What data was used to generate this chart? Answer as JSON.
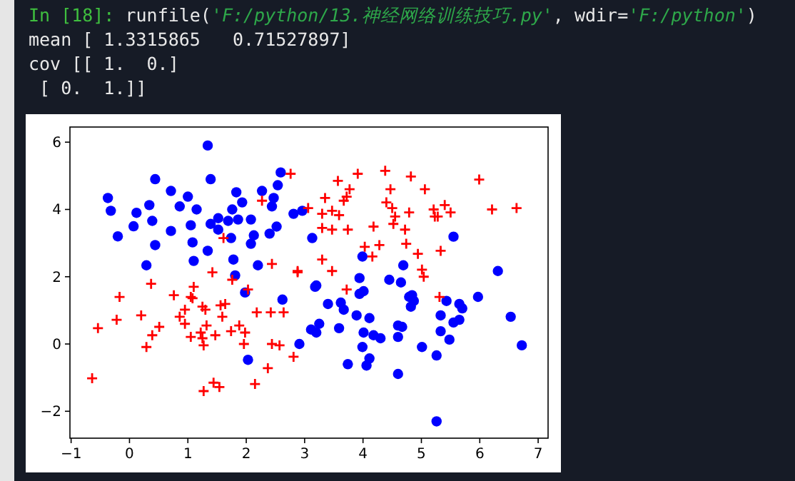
{
  "chart_data": {
    "type": "scatter",
    "annotations": [
      "In [18]: runfile('F:/python/13.神经网络训练技巧.py', wdir='F:/python')",
      "mean [ 1.3315865   0.71527897]",
      "cov [[ 1.  0.]",
      " [ 0.  1.]]"
    ],
    "xlim": [
      -1.02,
      7.17
    ],
    "ylim": [
      -2.8,
      6.45
    ],
    "xticks": [
      -1,
      0,
      1,
      2,
      3,
      4,
      5,
      6,
      7
    ],
    "yticks": [
      -2,
      0,
      2,
      4,
      6
    ],
    "series": [
      {
        "color": "#0000ff",
        "marker": "circle",
        "x": [
          1.34,
          -0.37,
          -0.32,
          -0.2,
          0.44,
          0.12,
          0.07,
          0.34,
          0.39,
          0.44,
          0.29,
          0.71,
          0.71,
          0.86,
          1.0,
          1.15,
          1.05,
          1.08,
          1.1,
          1.34,
          1.39,
          1.39,
          1.52,
          1.52,
          1.69,
          1.74,
          1.76,
          1.83,
          1.93,
          1.86,
          1.78,
          1.81,
          2.08,
          2.13,
          2.08,
          2.2,
          2.27,
          2.44,
          2.47,
          2.54,
          2.59,
          2.4,
          2.52,
          2.81,
          1.98,
          2.62,
          2.03,
          2.91,
          2.96,
          3.13,
          5.55,
          3.99,
          4.69,
          6.31,
          3.2,
          3.94,
          4.45,
          4.65,
          4.01,
          3.94,
          4.84,
          5.97,
          3.18,
          4.79,
          4.87,
          4.82,
          5.43,
          5.65,
          5.7,
          6.53,
          6.72,
          3.4,
          3.62,
          3.67,
          3.25,
          3.11,
          3.2,
          3.59,
          3.89,
          4.11,
          4.01,
          4.18,
          4.3,
          3.99,
          4.11,
          4.06,
          3.74,
          4.6,
          4.67,
          4.6,
          4.6,
          5.33,
          5.55,
          5.65,
          5.33,
          5.48,
          5.01,
          5.26,
          5.26
        ],
        "values": [
          5.9,
          4.34,
          3.96,
          3.2,
          4.9,
          3.9,
          3.5,
          4.13,
          3.66,
          2.94,
          2.34,
          4.55,
          3.36,
          4.09,
          4.38,
          4.0,
          3.53,
          3.02,
          2.47,
          2.77,
          4.9,
          3.57,
          3.74,
          3.4,
          3.66,
          3.15,
          4.0,
          4.51,
          4.21,
          3.7,
          2.51,
          2.04,
          3.7,
          3.23,
          2.98,
          2.34,
          4.55,
          4.09,
          4.34,
          4.72,
          5.1,
          3.28,
          3.49,
          3.87,
          1.53,
          1.32,
          -0.47,
          0.0,
          3.96,
          3.15,
          3.19,
          2.6,
          2.34,
          2.17,
          1.74,
          1.96,
          1.91,
          1.83,
          1.57,
          1.49,
          1.45,
          1.4,
          1.7,
          1.4,
          1.28,
          1.11,
          1.28,
          1.19,
          1.06,
          0.81,
          -0.04,
          1.19,
          1.23,
          1.02,
          0.6,
          0.43,
          0.34,
          0.47,
          0.85,
          0.77,
          0.34,
          0.26,
          0.17,
          -0.09,
          -0.43,
          -0.64,
          -0.6,
          0.55,
          0.51,
          0.21,
          -0.89,
          0.85,
          0.64,
          0.72,
          0.38,
          0.13,
          -0.09,
          -0.34,
          -2.3
        ]
      },
      {
        "color": "#ff0000",
        "marker": "cross",
        "x": [
          2.76,
          2.27,
          1.61,
          1.42,
          2.44,
          2.88,
          1.76,
          2.03,
          0.37,
          1.1,
          -0.17,
          0.76,
          1.05,
          3.57,
          3.91,
          4.38,
          4.82,
          5.99,
          3.77,
          4.47,
          5.06,
          3.35,
          3.67,
          3.72,
          4.4,
          4.5,
          5.4,
          5.21,
          5.5,
          6.21,
          6.63,
          3.06,
          3.3,
          3.47,
          3.59,
          4.79,
          4.55,
          4.52,
          5.23,
          5.28,
          3.3,
          3.47,
          3.74,
          4.18,
          4.72,
          4.74,
          4.03,
          4.28,
          4.16,
          4.94,
          5.33,
          3.3,
          2.88,
          3.47,
          5.01,
          5.04,
          3.72,
          5.31,
          1.08,
          -0.22,
          0.2,
          -0.54,
          0.51,
          0.86,
          0.95,
          0.95,
          1.25,
          1.3,
          1.56,
          1.64,
          1.59,
          1.32,
          1.22,
          1.05,
          1.25,
          1.47,
          1.27,
          0.39,
          0.29,
          1.74,
          1.88,
          1.98,
          1.96,
          2.18,
          2.42,
          2.64,
          2.44,
          2.57,
          2.81,
          2.37,
          2.15,
          1.27,
          1.44,
          1.54,
          -0.64
        ],
        "values": [
          5.06,
          4.26,
          3.15,
          2.13,
          2.38,
          2.13,
          1.91,
          1.62,
          1.79,
          1.7,
          1.4,
          1.45,
          1.4,
          4.85,
          5.06,
          5.15,
          4.98,
          4.89,
          4.6,
          4.6,
          4.6,
          4.34,
          4.26,
          4.38,
          4.21,
          4.04,
          4.13,
          4.0,
          3.91,
          4.0,
          4.04,
          4.04,
          3.87,
          3.96,
          3.83,
          3.91,
          3.79,
          3.57,
          3.79,
          3.79,
          3.45,
          3.4,
          3.4,
          3.49,
          3.4,
          2.98,
          2.89,
          2.94,
          2.6,
          2.68,
          2.77,
          2.51,
          2.17,
          2.17,
          2.21,
          2.0,
          1.62,
          1.4,
          1.36,
          0.72,
          0.85,
          0.47,
          0.51,
          0.81,
          1.02,
          0.6,
          1.11,
          1.02,
          1.15,
          1.19,
          0.81,
          0.55,
          0.34,
          0.21,
          0.17,
          0.26,
          -0.04,
          0.26,
          -0.09,
          0.38,
          0.55,
          0.34,
          0.0,
          0.94,
          0.94,
          0.94,
          0.0,
          -0.04,
          -0.38,
          -0.72,
          -1.19,
          -1.4,
          -1.15,
          -1.28,
          -1.02
        ]
      }
    ]
  }
}
